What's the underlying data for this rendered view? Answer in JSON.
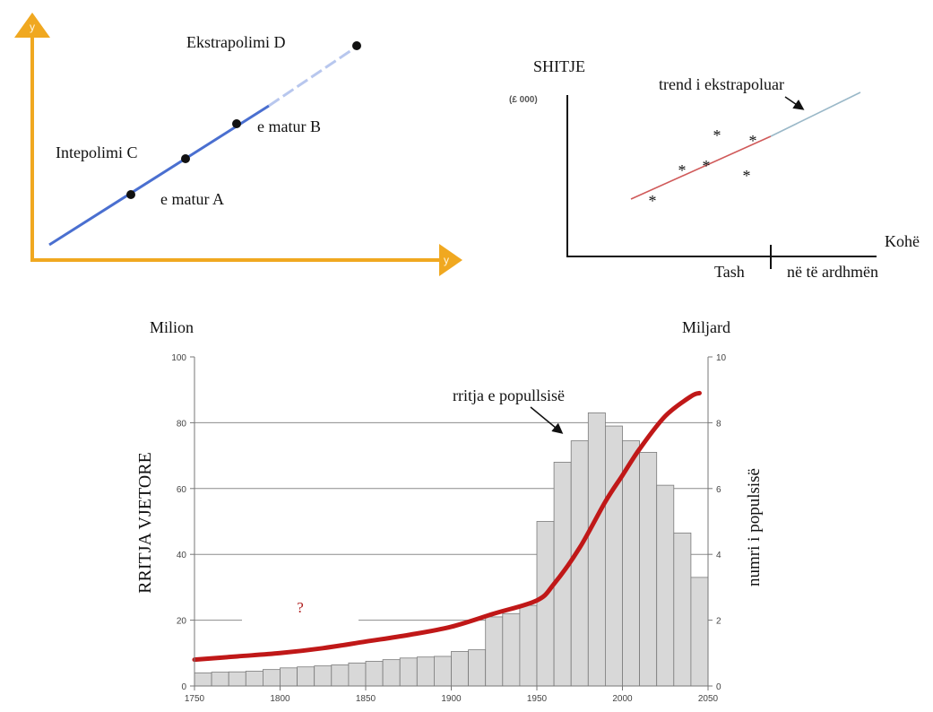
{
  "chart_data": [
    {
      "type": "line",
      "labels": {
        "extrapolation": "Ekstrapolimi D",
        "measured_b": "e matur B",
        "interpolation": "Intepolimi C",
        "measured_a": "e matur A"
      },
      "axis_glyph": "y",
      "colors": {
        "axis": "#f0a820",
        "line": "#4a6fd0",
        "line_dashed": "#b8c7ee",
        "point": "#111111"
      }
    },
    {
      "type": "scatter",
      "ylabel": "SHITJE",
      "yunit": "(£ 000)",
      "xlabel": "Kohë",
      "trend_label": "trend i ekstrapoluar",
      "x_now": "Tash",
      "x_future": "në të ardhmën",
      "marker": "*",
      "colors": {
        "trend": "#d05a5a",
        "trend_extrapolated": "#9ab8c8"
      }
    },
    {
      "type": "bar",
      "left_unit": "Milion",
      "right_unit": "Miljard",
      "ylabel": "RRITJA VJETORE",
      "y2label": "numri i populsisë",
      "annotation": "rritja e popullsisë",
      "question": "?",
      "xlim": [
        1750,
        2050
      ],
      "ylim": [
        0,
        100
      ],
      "y2lim": [
        0,
        10
      ],
      "xticks": [
        "1750",
        "1800",
        "1850",
        "1900",
        "1950",
        "2000",
        "2050"
      ],
      "yticks": [
        "0",
        "20",
        "40",
        "60",
        "80",
        "100"
      ],
      "y2ticks": [
        "0",
        "2",
        "4",
        "6",
        "8",
        "10"
      ],
      "bar_width_years": 10,
      "bar_x": [
        1750,
        1760,
        1770,
        1780,
        1790,
        1800,
        1810,
        1820,
        1830,
        1840,
        1850,
        1860,
        1870,
        1880,
        1890,
        1900,
        1910,
        1920,
        1930,
        1940,
        1950,
        1960,
        1970,
        1980,
        1990,
        2000,
        2010,
        2020,
        2030,
        2040
      ],
      "bar_values": [
        4,
        4.2,
        4.3,
        4.5,
        5,
        5.5,
        5.8,
        6.1,
        6.4,
        7,
        7.5,
        8,
        8.5,
        8.8,
        9,
        10.5,
        11,
        21,
        22,
        24.5,
        50,
        68,
        74.5,
        83,
        79,
        74.5,
        71,
        61,
        46.5,
        33
      ],
      "series": [
        {
          "name": "rritja e popullsisë",
          "x": [
            1750,
            1775,
            1800,
            1825,
            1850,
            1875,
            1900,
            1925,
            1950,
            1960,
            1975,
            1990,
            2000,
            2010,
            2025,
            2040,
            2045
          ],
          "values": [
            0.8,
            0.9,
            1.0,
            1.15,
            1.35,
            1.55,
            1.8,
            2.2,
            2.6,
            3.1,
            4.2,
            5.6,
            6.4,
            7.2,
            8.2,
            8.8,
            8.9
          ]
        }
      ],
      "colors": {
        "bar": "#d8d8d8",
        "bar_edge": "#7a7a7a",
        "curve": "#c01818",
        "grid": "#8c8c8c",
        "question": "#b02020"
      }
    }
  ]
}
